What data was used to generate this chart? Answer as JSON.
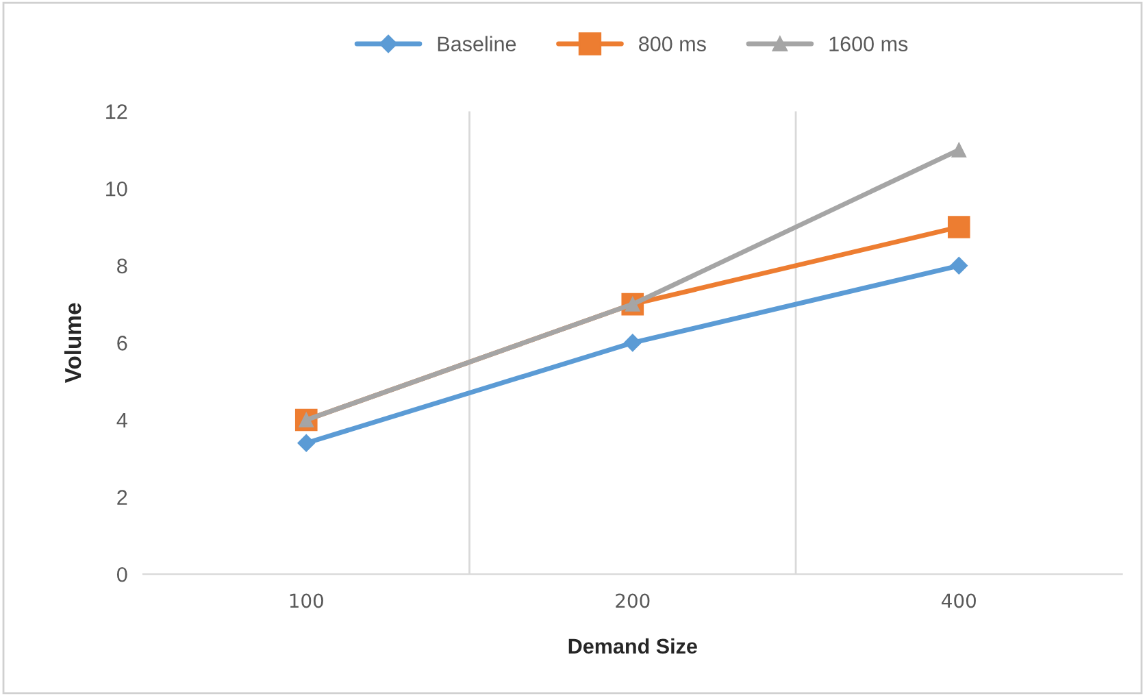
{
  "chart_data": {
    "type": "line",
    "xlabel": "Demand Size",
    "ylabel": "Volume",
    "categories": [
      "100",
      "200",
      "400"
    ],
    "series": [
      {
        "name": "Baseline",
        "color": "#5b9bd5",
        "marker": "diamond",
        "values": [
          3.4,
          6,
          8
        ]
      },
      {
        "name": "800 ms",
        "color": "#ed7d31",
        "marker": "square",
        "values": [
          4,
          7,
          9
        ]
      },
      {
        "name": "1600 ms",
        "color": "#a5a5a5",
        "marker": "triangle",
        "values": [
          4,
          7,
          11
        ]
      }
    ],
    "ylim": [
      0,
      12
    ],
    "yticks": [
      0,
      2,
      4,
      6,
      8,
      10,
      12
    ],
    "grid": "x",
    "legend": "top",
    "line_style": "solid"
  }
}
